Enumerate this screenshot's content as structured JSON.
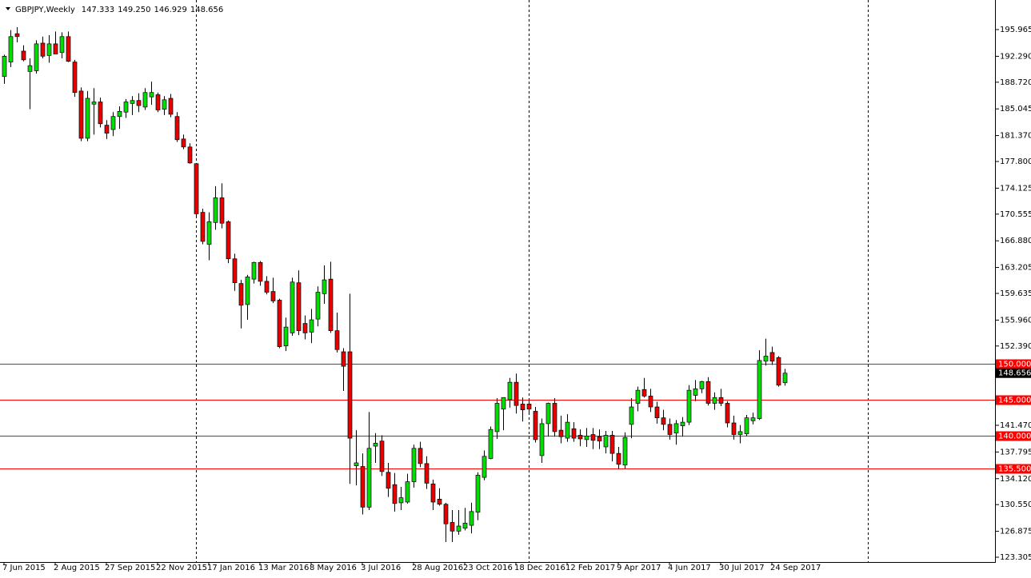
{
  "chart_data": {
    "type": "candlestick",
    "title": "GBPJPY,Weekly",
    "ohlc_labels": [
      "147.333",
      "149.250",
      "146.929",
      "148.656"
    ],
    "up_color": "#00dd00",
    "down_color": "#e60000",
    "wick_color": "#000000",
    "ylim": [
      122.645,
      200.04
    ],
    "yticks": [
      195.965,
      {
        "value": 192.29,
        "label": "192.290"
      },
      {
        "value": 188.72,
        "label": "188.720"
      },
      185.045,
      {
        "value": 181.37,
        "label": "181.370"
      },
      {
        "value": 177.8,
        "label": "177.800"
      },
      174.125,
      170.555,
      {
        "value": 166.88,
        "label": "166.880"
      },
      163.205,
      159.635,
      {
        "value": 155.96,
        "label": "155.960"
      },
      {
        "value": 152.39,
        "label": "152.390"
      },
      {
        "value": 141.47,
        "label": "141.470"
      },
      137.795,
      {
        "value": 134.12,
        "label": "134.120"
      },
      {
        "value": 130.55,
        "label": "130.550"
      },
      126.875,
      123.305
    ],
    "levels": [
      {
        "value": 150,
        "label": "150.000"
      },
      {
        "value": 145,
        "label": "145.000"
      },
      {
        "value": 140,
        "label": "140.000"
      },
      {
        "value": 135.5,
        "label": "135.500"
      }
    ],
    "level_color": "#ff0000",
    "categories": [
      "7 Jun 2015",
      null,
      null,
      null,
      null,
      null,
      null,
      null,
      "2 Aug 2015",
      null,
      null,
      null,
      null,
      null,
      null,
      null,
      "27 Sep 2015",
      null,
      null,
      null,
      null,
      null,
      null,
      null,
      "22 Nov 2015",
      null,
      null,
      null,
      null,
      null,
      null,
      null,
      "17 Jan 2016",
      null,
      null,
      null,
      null,
      null,
      null,
      null,
      "13 Mar 2016",
      null,
      null,
      null,
      null,
      null,
      null,
      null,
      "8 May 2016",
      null,
      null,
      null,
      null,
      null,
      null,
      null,
      "3 Jul 2016",
      null,
      null,
      null,
      null,
      null,
      null,
      null,
      "28 Aug 2016",
      null,
      null,
      null,
      null,
      null,
      null,
      null,
      "23 Oct 2016",
      null,
      null,
      null,
      null,
      null,
      null,
      null,
      "18 Dec 2016",
      null,
      null,
      null,
      null,
      null,
      null,
      null,
      "12 Feb 2017",
      null,
      null,
      null,
      null,
      null,
      null,
      null,
      "9 Apr 2017",
      null,
      null,
      null,
      null,
      null,
      null,
      null,
      "4 Jun 2017",
      null,
      null,
      null,
      null,
      null,
      null,
      null,
      "30 Jul 2017",
      null,
      null,
      null,
      null,
      null,
      null,
      null,
      "24 Sep 2017",
      null,
      null
    ],
    "ohlc": [
      [
        189.5,
        192.5,
        188.5,
        192.3
      ],
      [
        191.5,
        195.9,
        190.8,
        195.0
      ],
      [
        195.4,
        196.3,
        194.2,
        195.0
      ],
      [
        193.0,
        193.8,
        191.6,
        191.8
      ],
      [
        190.2,
        192.0,
        185.0,
        191.0
      ],
      [
        190.3,
        194.5,
        189.9,
        194.0
      ],
      [
        194.1,
        195.0,
        192.0,
        192.3
      ],
      [
        192.4,
        195.2,
        191.4,
        194.0
      ],
      [
        194.0,
        195.7,
        192.6,
        192.6
      ],
      [
        192.8,
        195.6,
        192.0,
        195.0
      ],
      [
        195.0,
        195.7,
        191.5,
        191.6
      ],
      [
        191.5,
        191.8,
        186.7,
        187.3
      ],
      [
        187.5,
        188.0,
        180.6,
        181.0
      ],
      [
        181.0,
        187.5,
        180.6,
        186.5
      ],
      [
        185.7,
        187.9,
        181.5,
        186.0
      ],
      [
        186.0,
        186.6,
        182.5,
        183.0
      ],
      [
        182.8,
        183.5,
        180.9,
        181.7
      ],
      [
        182.2,
        184.6,
        181.3,
        184.0
      ],
      [
        184.0,
        185.4,
        182.3,
        184.7
      ],
      [
        184.6,
        186.4,
        183.8,
        186.0
      ],
      [
        185.8,
        186.8,
        184.2,
        186.2
      ],
      [
        186.2,
        187.2,
        184.6,
        185.5
      ],
      [
        185.3,
        187.9,
        184.9,
        187.3
      ],
      [
        186.7,
        188.8,
        185.6,
        187.3
      ],
      [
        187.0,
        187.3,
        184.6,
        184.9
      ],
      [
        185.0,
        186.8,
        184.2,
        186.3
      ],
      [
        186.5,
        187.1,
        183.9,
        184.3
      ],
      [
        184.0,
        184.6,
        180.5,
        180.8
      ],
      [
        180.9,
        181.5,
        179.5,
        179.8
      ],
      [
        179.8,
        180.3,
        177.5,
        177.6
      ],
      [
        177.5,
        177.6,
        170.3,
        170.6
      ],
      [
        170.8,
        171.3,
        166.4,
        166.8
      ],
      [
        166.4,
        170.8,
        164.2,
        169.5
      ],
      [
        169.4,
        174.4,
        168.4,
        172.8
      ],
      [
        172.8,
        174.8,
        168.6,
        169.3
      ],
      [
        169.5,
        169.7,
        163.8,
        164.4
      ],
      [
        164.4,
        165.1,
        160.0,
        161.1
      ],
      [
        161.0,
        161.5,
        154.8,
        158.0
      ],
      [
        158.1,
        162.2,
        156.0,
        161.9
      ],
      [
        161.6,
        164.0,
        161.0,
        163.9
      ],
      [
        163.9,
        164.1,
        160.7,
        161.3
      ],
      [
        161.3,
        162.0,
        159.5,
        159.8
      ],
      [
        159.9,
        161.8,
        158.3,
        158.6
      ],
      [
        158.7,
        158.9,
        152.1,
        152.3
      ],
      [
        152.4,
        156.3,
        151.7,
        155.0
      ],
      [
        154.2,
        161.8,
        153.8,
        161.2
      ],
      [
        161.1,
        162.8,
        153.9,
        154.5
      ],
      [
        155.5,
        156.6,
        153.3,
        154.2
      ],
      [
        154.3,
        157.5,
        152.8,
        156.0
      ],
      [
        156.1,
        160.6,
        155.1,
        159.8
      ],
      [
        159.6,
        163.5,
        158.2,
        161.5
      ],
      [
        161.6,
        164.0,
        154.2,
        154.5
      ],
      [
        154.5,
        157.0,
        151.5,
        151.9
      ],
      [
        151.6,
        152.1,
        146.2,
        149.6
      ],
      [
        151.6,
        159.6,
        133.4,
        139.7
      ],
      [
        135.9,
        140.8,
        133.2,
        136.3
      ],
      [
        135.8,
        137.6,
        129.2,
        130.2
      ],
      [
        130.2,
        143.3,
        129.8,
        138.3
      ],
      [
        138.6,
        140.4,
        136.3,
        139.0
      ],
      [
        139.3,
        140.1,
        134.5,
        135.1
      ],
      [
        135.0,
        136.3,
        131.6,
        132.8
      ],
      [
        133.3,
        134.9,
        129.6,
        130.7
      ],
      [
        130.8,
        133.0,
        129.8,
        131.5
      ],
      [
        130.9,
        134.8,
        130.7,
        133.7
      ],
      [
        133.7,
        138.8,
        132.9,
        138.3
      ],
      [
        138.3,
        139.2,
        135.7,
        136.2
      ],
      [
        136.2,
        137.2,
        132.7,
        133.5
      ],
      [
        133.4,
        134.0,
        129.8,
        130.9
      ],
      [
        131.3,
        132.8,
        130.4,
        130.6
      ],
      [
        130.6,
        130.8,
        125.4,
        127.9
      ],
      [
        128.1,
        129.8,
        125.4,
        126.9
      ],
      [
        126.9,
        129.8,
        126.4,
        127.6
      ],
      [
        127.3,
        130.1,
        127.0,
        128.0
      ],
      [
        127.7,
        130.8,
        126.6,
        129.6
      ],
      [
        129.5,
        135.0,
        128.4,
        134.6
      ],
      [
        134.3,
        138.0,
        133.9,
        137.2
      ],
      [
        136.9,
        141.3,
        136.8,
        140.9
      ],
      [
        140.6,
        145.2,
        139.6,
        144.5
      ],
      [
        143.7,
        145.3,
        140.8,
        145.3
      ],
      [
        145.0,
        148.0,
        143.9,
        147.4
      ],
      [
        147.4,
        148.6,
        143.1,
        144.2
      ],
      [
        144.4,
        145.3,
        142.0,
        143.6
      ],
      [
        144.4,
        145.1,
        143.0,
        143.7
      ],
      [
        143.4,
        144.0,
        139.1,
        139.5
      ],
      [
        137.3,
        142.4,
        136.3,
        141.7
      ],
      [
        141.7,
        144.6,
        139.9,
        144.5
      ],
      [
        144.5,
        145.2,
        139.9,
        140.6
      ],
      [
        140.8,
        142.8,
        139.0,
        139.9
      ],
      [
        139.7,
        143.0,
        139.2,
        141.9
      ],
      [
        141.0,
        141.9,
        139.2,
        139.7
      ],
      [
        140.1,
        140.9,
        138.6,
        139.6
      ],
      [
        139.5,
        141.1,
        138.5,
        140.0
      ],
      [
        140.2,
        141.1,
        138.2,
        139.4
      ],
      [
        139.9,
        140.9,
        138.2,
        139.3
      ],
      [
        138.5,
        140.7,
        137.6,
        140.1
      ],
      [
        140.1,
        140.7,
        136.5,
        137.6
      ],
      [
        137.6,
        138.5,
        135.4,
        136.1
      ],
      [
        136.0,
        140.5,
        135.5,
        139.8
      ],
      [
        141.6,
        145.2,
        139.7,
        144.0
      ],
      [
        144.5,
        146.8,
        143.4,
        146.3
      ],
      [
        146.4,
        148.0,
        145.3,
        145.5
      ],
      [
        145.5,
        146.5,
        143.3,
        144.0
      ],
      [
        144.0,
        144.7,
        141.7,
        142.5
      ],
      [
        142.5,
        143.6,
        140.8,
        141.6
      ],
      [
        141.6,
        142.4,
        139.5,
        140.2
      ],
      [
        140.4,
        142.2,
        138.8,
        141.7
      ],
      [
        141.4,
        142.6,
        139.9,
        141.9
      ],
      [
        141.9,
        147.0,
        141.5,
        146.3
      ],
      [
        145.6,
        147.7,
        144.8,
        146.5
      ],
      [
        146.5,
        147.6,
        145.9,
        147.5
      ],
      [
        147.5,
        148.1,
        144.2,
        144.5
      ],
      [
        144.5,
        146.0,
        143.6,
        145.3
      ],
      [
        145.3,
        146.5,
        144.1,
        144.5
      ],
      [
        144.5,
        144.8,
        141.2,
        141.8
      ],
      [
        141.8,
        142.8,
        139.5,
        140.2
      ],
      [
        140.2,
        141.5,
        139.0,
        140.6
      ],
      [
        140.3,
        142.9,
        140.0,
        142.5
      ],
      [
        142.1,
        143.2,
        141.6,
        142.5
      ],
      [
        142.4,
        151.8,
        142.2,
        150.4
      ],
      [
        150.3,
        153.4,
        149.7,
        151.0
      ],
      [
        151.5,
        152.3,
        149.8,
        150.3
      ],
      [
        150.8,
        151.0,
        146.8,
        147.0
      ],
      [
        147.333,
        149.25,
        146.929,
        148.656
      ]
    ]
  }
}
